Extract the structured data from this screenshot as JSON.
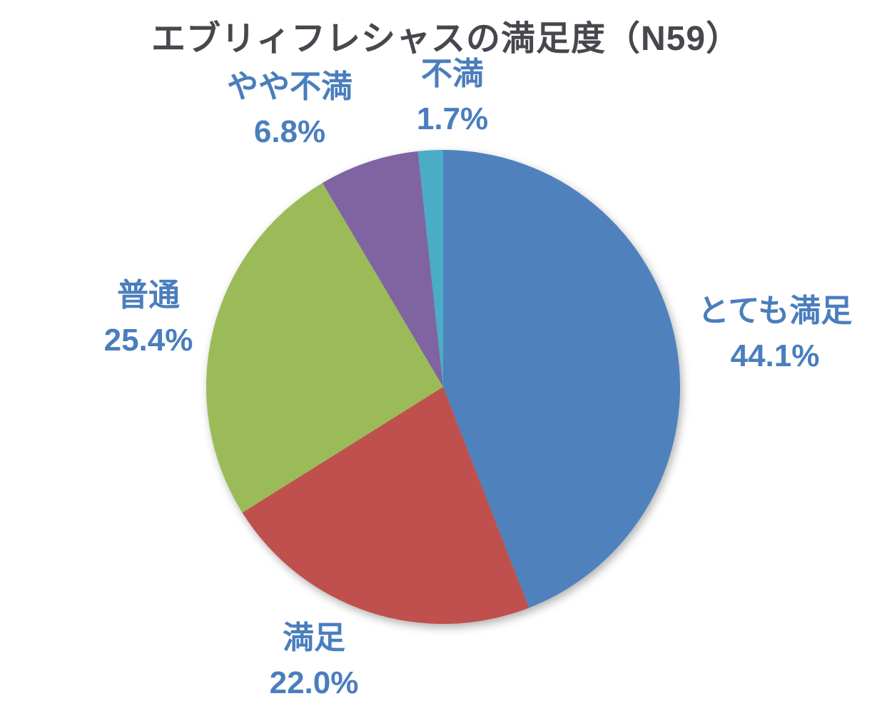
{
  "page": {
    "background_color": "#ffffff"
  },
  "chart_data": {
    "type": "pie",
    "title": "エブリィフレシャスの満足度（N59）",
    "title_color": "#47474E",
    "label_color": "#4A7EBD",
    "legend": "none",
    "start_angle_deg": 0,
    "direction": "clockwise",
    "slices": [
      {
        "label": "とても満足",
        "value": 44.1,
        "pct_label": "44.1%",
        "color": "#4F81BD"
      },
      {
        "label": "満足",
        "value": 22.0,
        "pct_label": "22.0%",
        "color": "#C0504D"
      },
      {
        "label": "普通",
        "value": 25.4,
        "pct_label": "25.4%",
        "color": "#9BBB59"
      },
      {
        "label": "やや不満",
        "value": 6.8,
        "pct_label": "6.8%",
        "color": "#8064A2"
      },
      {
        "label": "不満",
        "value": 1.7,
        "pct_label": "1.7%",
        "color": "#4BACC6"
      }
    ]
  }
}
